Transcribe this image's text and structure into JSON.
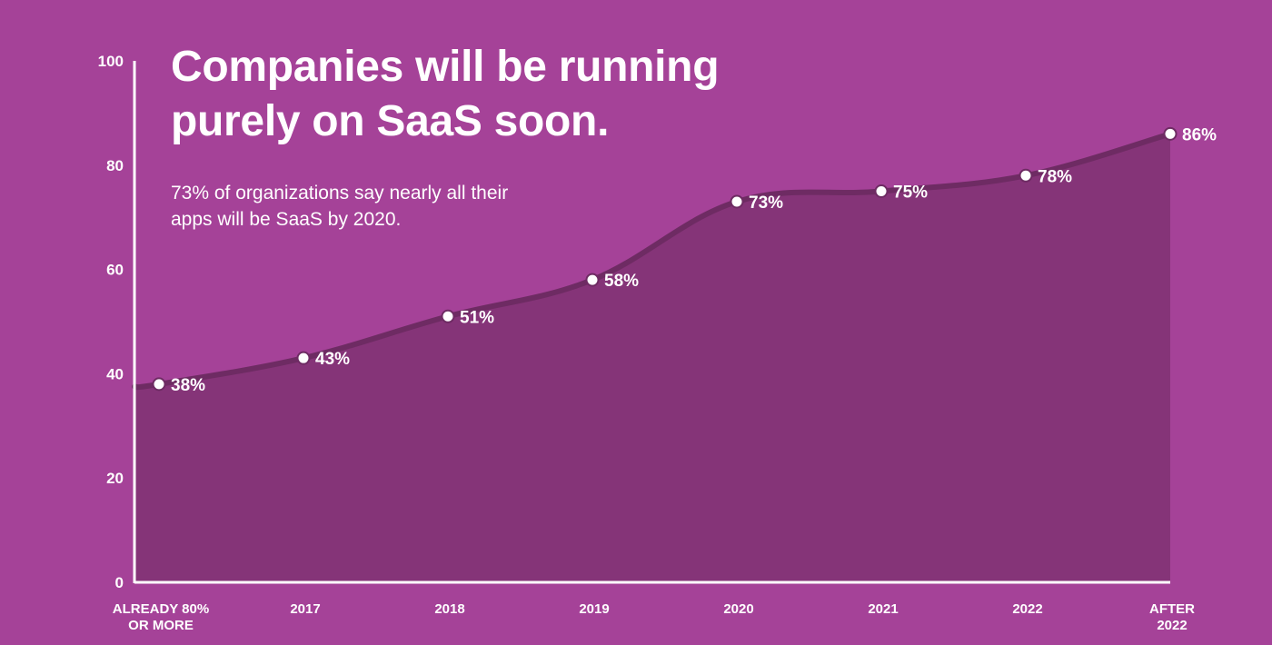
{
  "title_line1": "Companies will be running",
  "title_line2": "purely on SaaS soon.",
  "subtitle_line1": "73% of organizations say nearly all their",
  "subtitle_line2": "apps will be SaaS by 2020.",
  "colors": {
    "background": "#a54298",
    "area_fill": "#853478",
    "line": "#6e2b63",
    "axis": "#ffffff",
    "marker": "#ffffff"
  },
  "chart_data": {
    "type": "area",
    "title": "Companies will be running purely on SaaS soon.",
    "subtitle": "73% of organizations say nearly all their apps will be SaaS by 2020.",
    "categories": [
      [
        "ALREADY 80%",
        "OR MORE"
      ],
      [
        "2017"
      ],
      [
        "2018"
      ],
      [
        "2019"
      ],
      [
        "2020"
      ],
      [
        "2021"
      ],
      [
        "2022"
      ],
      [
        "AFTER",
        "2022"
      ]
    ],
    "values": [
      38,
      43,
      51,
      58,
      73,
      75,
      78,
      86
    ],
    "data_labels": [
      "38%",
      "43%",
      "51%",
      "58%",
      "73%",
      "75%",
      "78%",
      "86%"
    ],
    "ylim": [
      0,
      100
    ],
    "yticks": [
      0,
      20,
      40,
      60,
      80,
      100
    ],
    "grid": false,
    "legend": "none"
  }
}
